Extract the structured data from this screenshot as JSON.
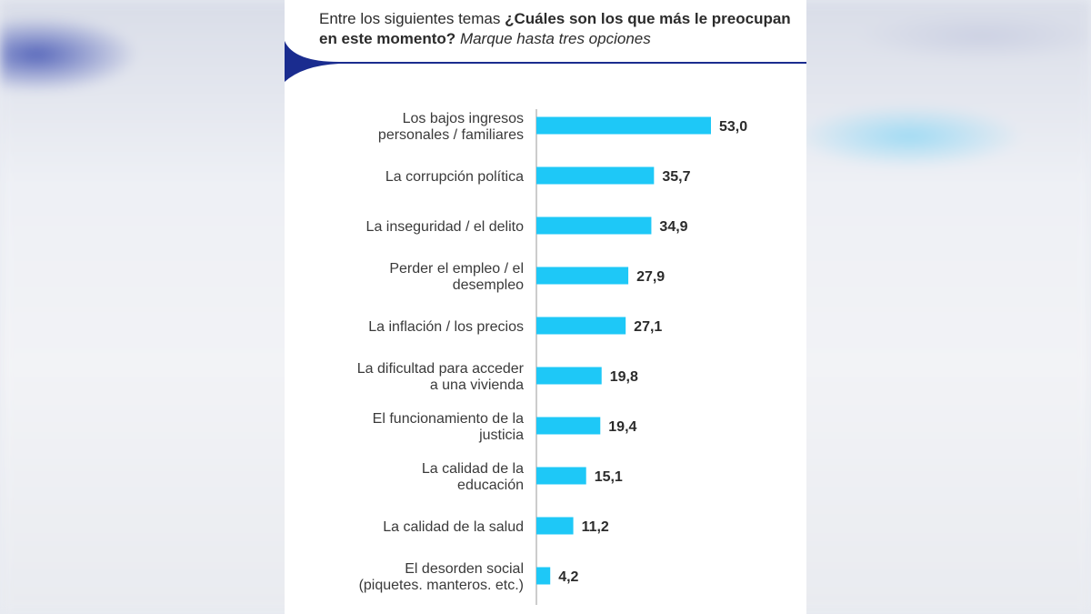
{
  "header": {
    "lead": "Entre los siguientes temas ",
    "question": "¿Cuáles son los que más le preocupan en este momento?",
    "instruction": "Marque hasta tres opciones"
  },
  "colors": {
    "bar": "#1ec8f7",
    "accent": "#1a2c8f",
    "axis": "#9a9a9a"
  },
  "chart_data": {
    "type": "bar",
    "orientation": "horizontal",
    "categories": [
      [
        "Los bajos ingresos",
        "personales / familiares"
      ],
      [
        "La corrupción política"
      ],
      [
        "La inseguridad / el delito"
      ],
      [
        "Perder el empleo / el",
        "desempleo"
      ],
      [
        "La inflación / los precios"
      ],
      [
        "La dificultad para acceder",
        "a una vivienda"
      ],
      [
        "El funcionamiento de la",
        "justicia"
      ],
      [
        "La calidad de la",
        "educación"
      ],
      [
        "La calidad de la salud"
      ],
      [
        "El desorden social",
        "(piquetes. manteros. etc.)"
      ]
    ],
    "values": [
      53.0,
      35.7,
      34.9,
      27.9,
      27.1,
      19.8,
      19.4,
      15.1,
      11.2,
      4.2
    ],
    "value_labels": [
      "53,0",
      "35,7",
      "34,9",
      "27,9",
      "27,1",
      "19,8",
      "19,4",
      "15,1",
      "11,2",
      "4,2"
    ],
    "xlim": [
      0,
      60
    ]
  }
}
